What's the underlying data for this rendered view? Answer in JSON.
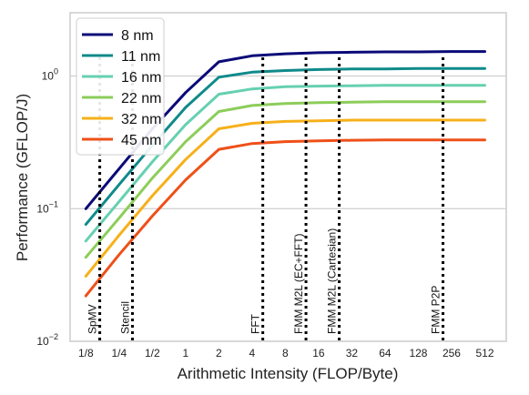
{
  "chart_data": {
    "type": "line",
    "xlabel": "Arithmetic Intensity (FLOP/Byte)",
    "ylabel": "Performance (GFLOP/J)",
    "x_scale": "log2",
    "y_scale": "log10",
    "xlim": [
      0.09,
      800
    ],
    "ylim": [
      0.01,
      3.0
    ],
    "x_ticks": [
      0.125,
      0.25,
      0.5,
      1,
      2,
      4,
      8,
      16,
      32,
      64,
      128,
      256,
      512
    ],
    "x_tick_labels": [
      "1/8",
      "1/4",
      "1/2",
      "1",
      "2",
      "4",
      "8",
      "16",
      "32",
      "64",
      "128",
      "256",
      "512"
    ],
    "y_ticks": [
      0.01,
      0.1,
      1
    ],
    "y_tick_labels": [
      {
        "base": "10",
        "exp": "−2"
      },
      {
        "base": "10",
        "exp": "−1"
      },
      {
        "base": "10",
        "exp": "0"
      }
    ],
    "grid": "horizontal",
    "legend_position": "top-left",
    "x": [
      0.125,
      0.25,
      0.5,
      1,
      2,
      4,
      8,
      16,
      32,
      64,
      128,
      256,
      512
    ],
    "series": [
      {
        "name": "8 nm",
        "color": "#0a0a78",
        "values": [
          0.1,
          0.2,
          0.4,
          0.75,
          1.28,
          1.42,
          1.47,
          1.5,
          1.51,
          1.52,
          1.52,
          1.53,
          1.53
        ]
      },
      {
        "name": "11 nm",
        "color": "#0f8a8a",
        "values": [
          0.076,
          0.152,
          0.3,
          0.58,
          0.98,
          1.07,
          1.1,
          1.12,
          1.13,
          1.13,
          1.14,
          1.14,
          1.14
        ]
      },
      {
        "name": "16 nm",
        "color": "#66d0b0",
        "values": [
          0.057,
          0.113,
          0.225,
          0.43,
          0.73,
          0.8,
          0.83,
          0.84,
          0.845,
          0.85,
          0.85,
          0.85,
          0.85
        ]
      },
      {
        "name": "22 nm",
        "color": "#8ccd5a",
        "values": [
          0.043,
          0.085,
          0.17,
          0.32,
          0.54,
          0.6,
          0.62,
          0.63,
          0.635,
          0.64,
          0.64,
          0.64,
          0.64
        ]
      },
      {
        "name": "32 nm",
        "color": "#f6b01a",
        "values": [
          0.031,
          0.063,
          0.125,
          0.235,
          0.4,
          0.44,
          0.455,
          0.46,
          0.465,
          0.465,
          0.465,
          0.465,
          0.465
        ]
      },
      {
        "name": "45 nm",
        "color": "#ee5018",
        "values": [
          0.022,
          0.045,
          0.088,
          0.165,
          0.28,
          0.31,
          0.32,
          0.325,
          0.328,
          0.33,
          0.33,
          0.33,
          0.33
        ]
      }
    ],
    "annotations": [
      {
        "label": "SpMV",
        "x": 0.167
      },
      {
        "label": "Stencil",
        "x": 0.33
      },
      {
        "label": "FFT",
        "x": 5.0
      },
      {
        "label": "FMM M2L (EC+FFT)",
        "x": 12.3
      },
      {
        "label": "FMM M2L (Cartesian)",
        "x": 24.6
      },
      {
        "label": "FMM P2P",
        "x": 214
      }
    ]
  }
}
